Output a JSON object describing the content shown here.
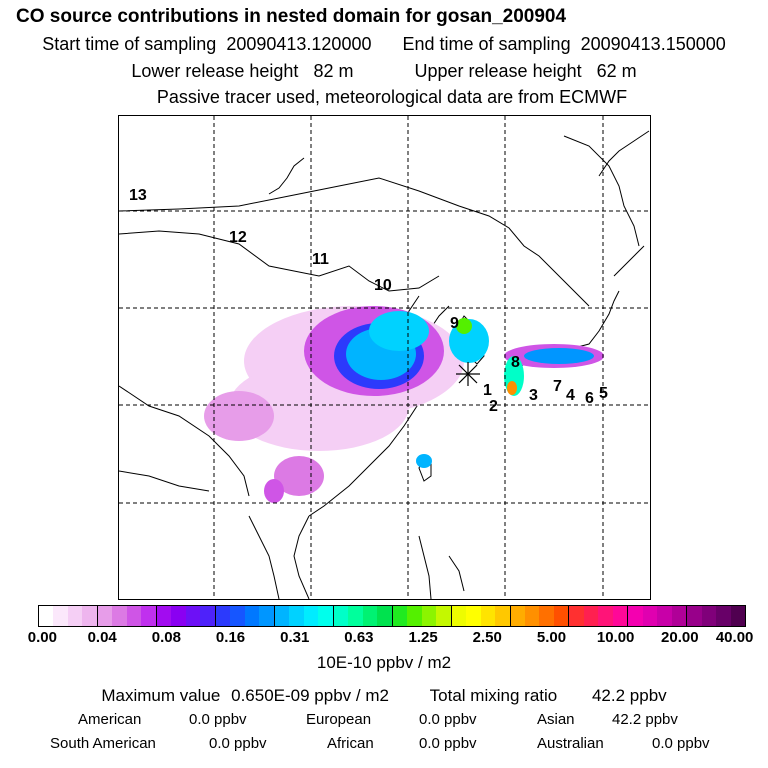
{
  "title": "CO  source contributions in nested domain for gosan_200904",
  "sampling": {
    "start_label": "Start time of sampling",
    "start_value": "20090413.120000",
    "end_label": "End time of sampling",
    "end_value": "20090413.150000"
  },
  "release": {
    "lower_label": "Lower release height",
    "lower_value": "82 m",
    "upper_label": "Upper release height",
    "upper_value": "62 m"
  },
  "note": "Passive tracer used, meteorological data are from ECMWF",
  "region_labels": [
    "1",
    "2",
    "3",
    "4",
    "5",
    "6",
    "7",
    "8",
    "9",
    "10",
    "11",
    "12",
    "13"
  ],
  "colorbar": {
    "ticks": [
      "0.00",
      "0.04",
      "0.08",
      "0.16",
      "0.31",
      "0.63",
      "1.25",
      "2.50",
      "5.00",
      "10.00",
      "20.00",
      "40.00"
    ],
    "unit": "10E-10 ppbv / m2",
    "colors": [
      "#ffffff",
      "#fbe8fb",
      "#f5cff5",
      "#eeb5ee",
      "#e79de9",
      "#dc7ae4",
      "#cf55e6",
      "#c030ee",
      "#a20cf0",
      "#8a00f2",
      "#6d10f6",
      "#4e22fa",
      "#2c3afc",
      "#1656ff",
      "#0078ff",
      "#0096ff",
      "#00b4ff",
      "#00d2ff",
      "#00ecff",
      "#00ffec",
      "#00ffc8",
      "#00ff9c",
      "#00f272",
      "#00e24e",
      "#20ea20",
      "#54f000",
      "#8cf400",
      "#c4f800",
      "#eefc00",
      "#ffff00",
      "#ffe400",
      "#ffc800",
      "#ffac00",
      "#ff9000",
      "#ff7000",
      "#ff5000",
      "#ff3030",
      "#ff2050",
      "#ff1478",
      "#ff0898",
      "#f400b0",
      "#e000b0",
      "#c800a8",
      "#b00098",
      "#98008a",
      "#80007a",
      "#680068",
      "#500050"
    ]
  },
  "summary": {
    "max_label": "Maximum value",
    "max_value": "0.650E-09 ppbv / m2",
    "total_label": "Total mixing ratio",
    "total_value": "42.2 ppbv"
  },
  "contributions": [
    {
      "name": "American",
      "value": "0.0 ppbv"
    },
    {
      "name": "European",
      "value": "0.0 ppbv"
    },
    {
      "name": "Asian",
      "value": "42.2 ppbv"
    },
    {
      "name": "South American",
      "value": "0.0 ppbv"
    },
    {
      "name": "African",
      "value": "0.0 ppbv"
    },
    {
      "name": "Australian",
      "value": "0.0 ppbv"
    }
  ]
}
